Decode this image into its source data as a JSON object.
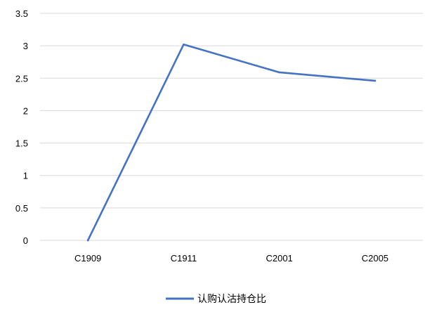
{
  "chart_data": {
    "type": "line",
    "categories": [
      "C1909",
      "C1911",
      "C2001",
      "C2005"
    ],
    "series": [
      {
        "name": "认购认沽持仓比",
        "values": [
          0.0,
          3.02,
          2.59,
          2.46
        ],
        "color": "#4472c4"
      }
    ],
    "title": "",
    "xlabel": "",
    "ylabel": "",
    "ylim": [
      0,
      3.5
    ],
    "yticks": [
      0,
      0.5,
      1,
      1.5,
      2,
      2.5,
      3,
      3.5
    ],
    "ytick_labels": [
      "0",
      "0.5",
      "1",
      "1.5",
      "2",
      "2.5",
      "3",
      "3.5"
    ],
    "grid": "horizontal",
    "legend": "bottom"
  }
}
